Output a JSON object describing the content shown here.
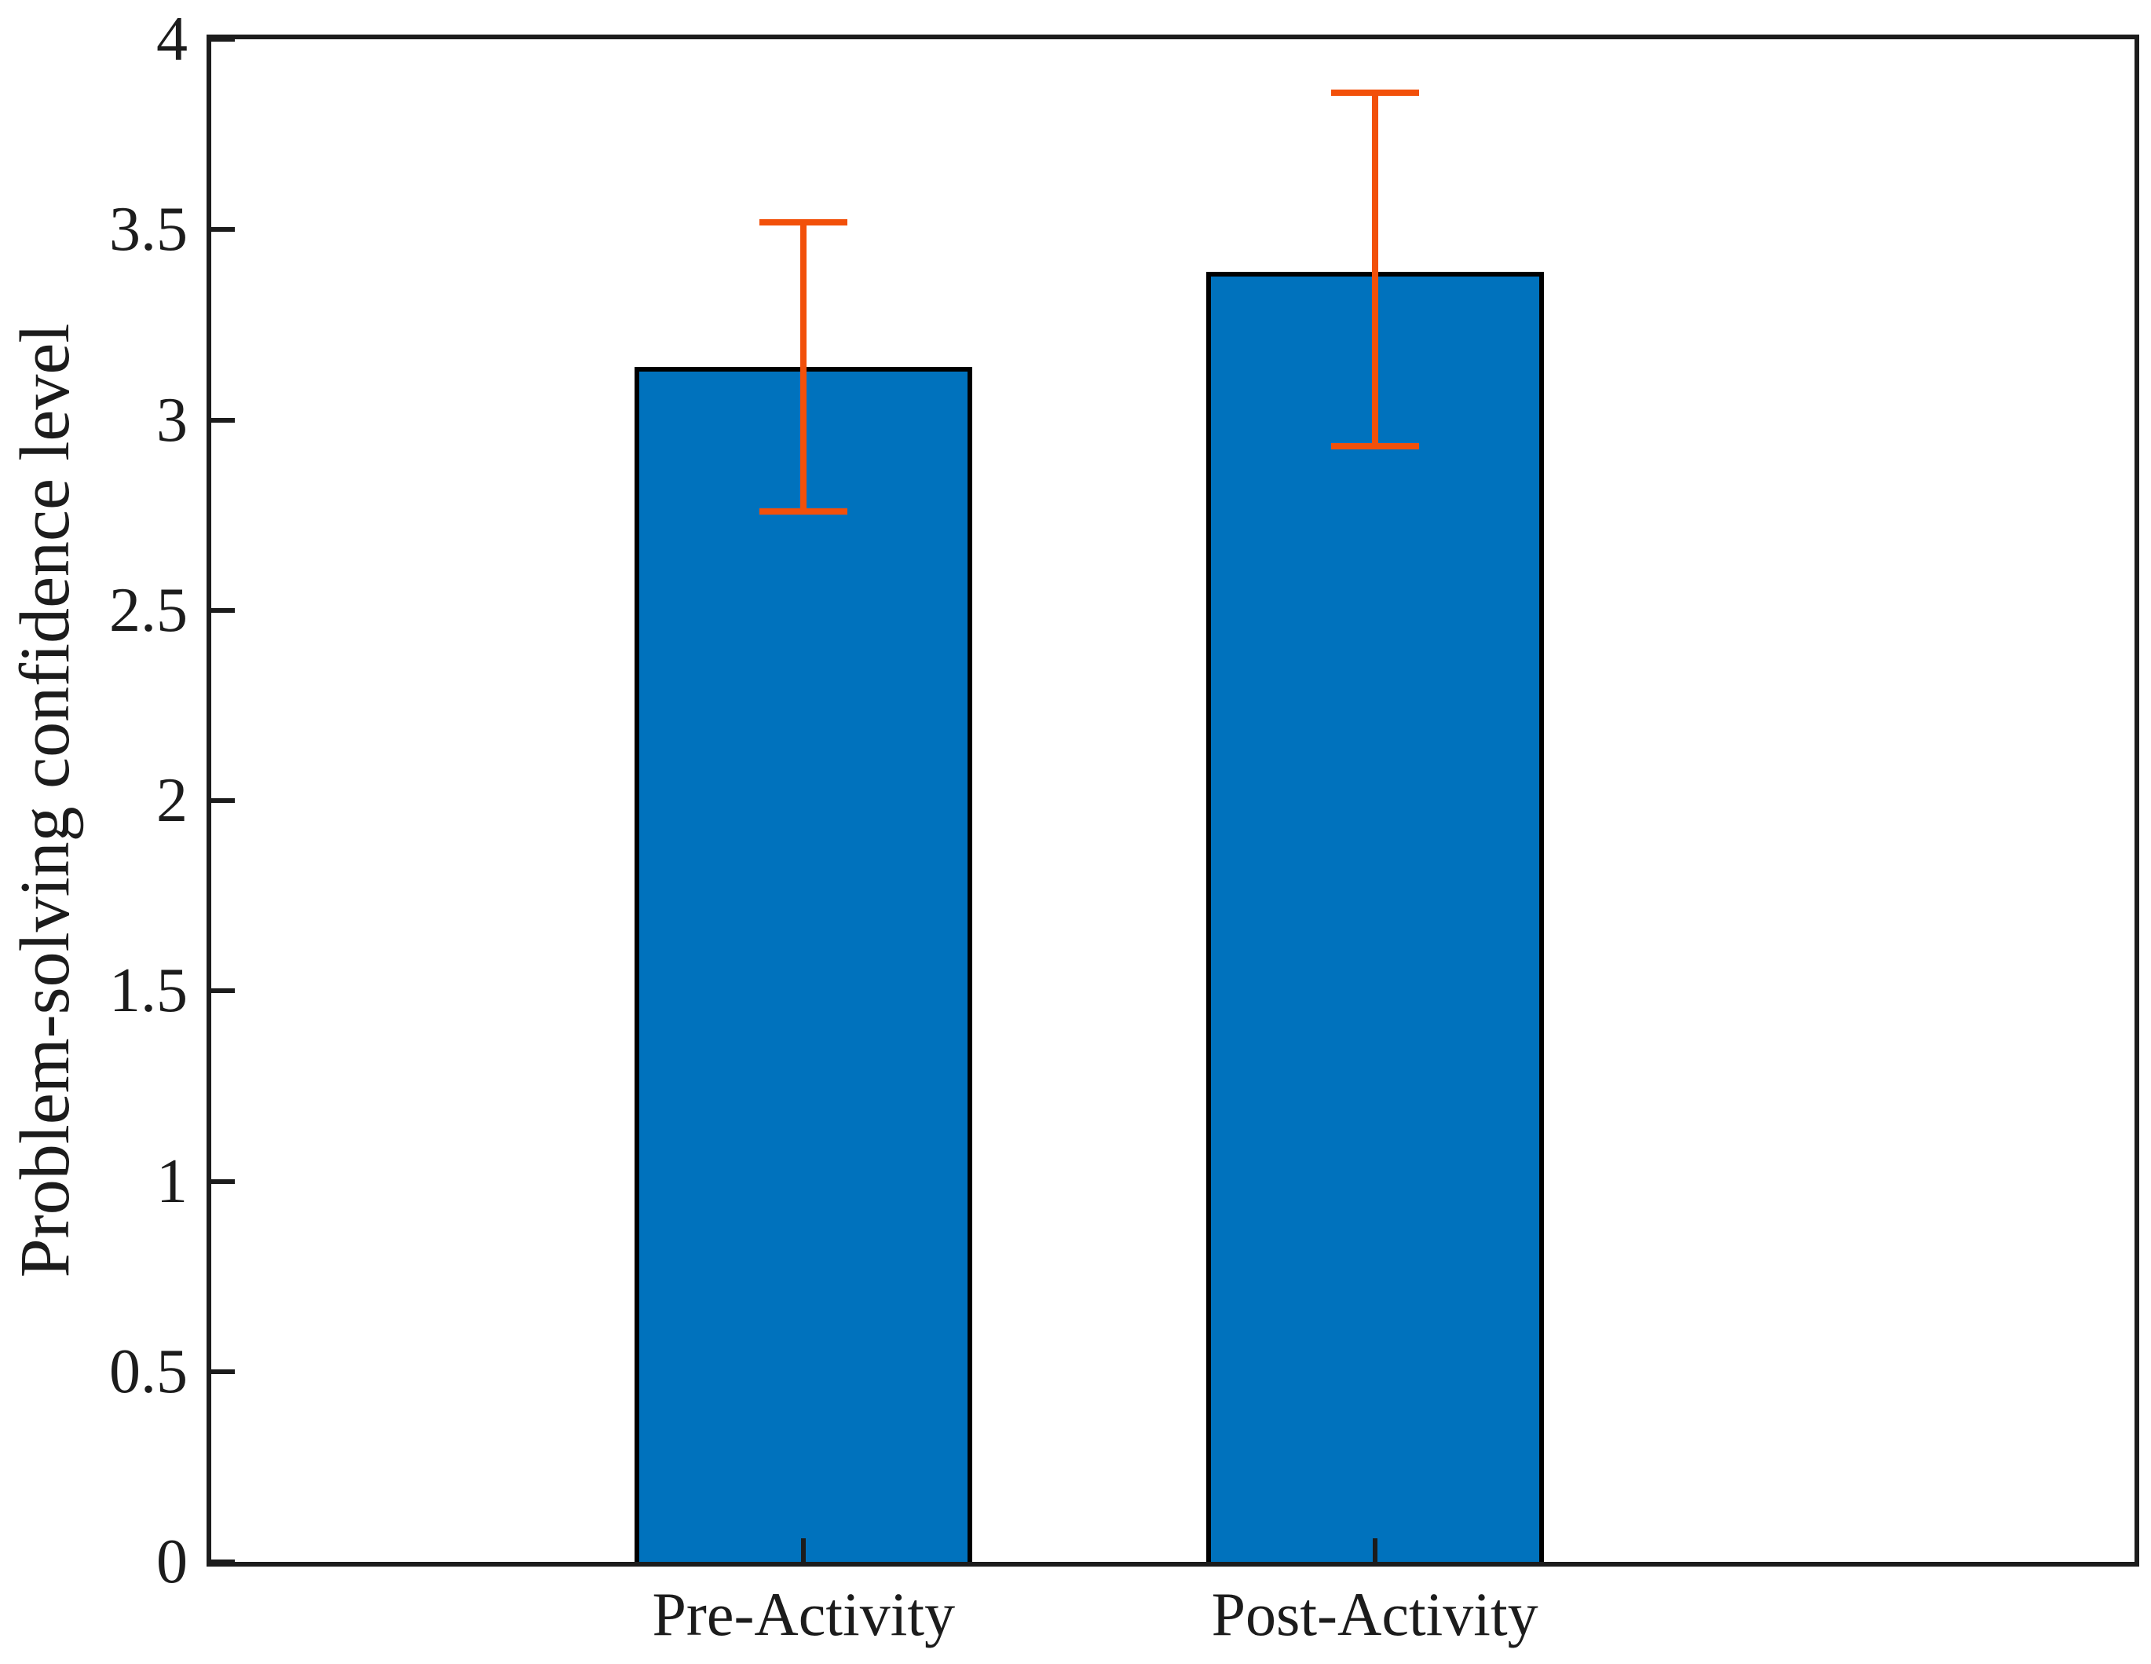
{
  "chart_data": {
    "type": "bar",
    "title": "",
    "xlabel": "",
    "ylabel": "Problem-solving confidence level",
    "categories": [
      "Pre-Activity",
      "Post-Activity"
    ],
    "values": [
      3.14,
      3.39
    ],
    "error_upper": [
      3.52,
      3.86
    ],
    "error_lower": [
      2.76,
      2.93
    ],
    "ylim": [
      0,
      4
    ],
    "ytick_step": 0.5,
    "ytick_labels": [
      "0",
      "0.5",
      "1",
      "1.5",
      "2",
      "2.5",
      "3",
      "3.5",
      "4"
    ],
    "grid": false,
    "legend_position": "none",
    "bar_color": "#0072BD",
    "bar_edge_color": "#000000",
    "error_bar_color": "#F2500A",
    "axis_color": "#1C1C1C",
    "background_color": "#FFFFFF"
  }
}
